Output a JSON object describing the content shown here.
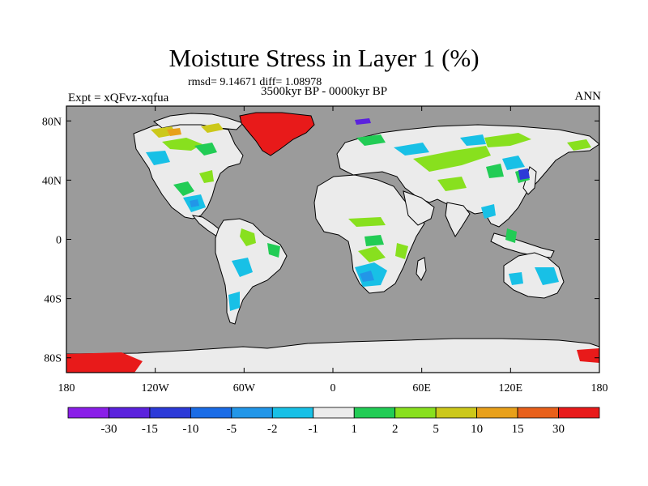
{
  "figure": {
    "title": "Moisture Stress in Layer 1 (%)",
    "stats_line": "rmsd= 9.14671 diff= 1.08978",
    "period": "3500kyr BP - 0000kyr BP",
    "experiment": "Expt = xQFvz-xqfua",
    "season": "ANN"
  },
  "map": {
    "ocean_color": "#9b9b9b",
    "land_color": "#ebebeb",
    "x_axis": {
      "ticks": [
        -180,
        -120,
        -60,
        0,
        60,
        120,
        180
      ],
      "labels": [
        "180",
        "120W",
        "60W",
        "0",
        "60E",
        "120E",
        "180"
      ]
    },
    "y_axis": {
      "ticks": [
        80,
        40,
        0,
        -40,
        -80
      ],
      "labels": [
        "80N",
        "40N",
        "0",
        "40S",
        "80S"
      ]
    },
    "lon_range": [
      -180,
      180
    ],
    "lat_range": [
      -90,
      90
    ]
  },
  "colorbar": {
    "colors": [
      "#8a1ee8",
      "#5b22dd",
      "#2c3ad8",
      "#1a6ce6",
      "#2296e8",
      "#18c0e6",
      "#ebebeb",
      "#22cc55",
      "#88e01e",
      "#ccc81a",
      "#e8a01a",
      "#e8601a",
      "#e81a1a"
    ],
    "labels": [
      "-30",
      "-15",
      "-10",
      "-5",
      "-2",
      "-1",
      "1",
      "2",
      "5",
      "10",
      "15",
      "30"
    ]
  }
}
